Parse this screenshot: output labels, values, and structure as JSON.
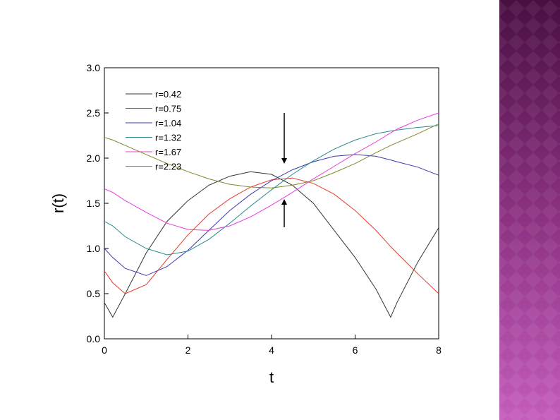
{
  "chart_data": {
    "type": "line",
    "x_label": "t",
    "y_label": "r(t)",
    "x": [
      0,
      0.2,
      0.5,
      1,
      1.5,
      2,
      2.5,
      3,
      3.5,
      4,
      4.5,
      5,
      5.5,
      6,
      6.5,
      6.85,
      7,
      7.5,
      8
    ],
    "series": [
      {
        "name": "r=0.42",
        "color": "#333333",
        "values": [
          0.4,
          0.24,
          0.5,
          0.95,
          1.3,
          1.53,
          1.7,
          1.8,
          1.85,
          1.82,
          1.7,
          1.5,
          1.2,
          0.9,
          0.55,
          0.24,
          0.4,
          0.85,
          1.23
        ]
      },
      {
        "name": "r=0.75",
        "color": "#e8392c",
        "values": [
          0.75,
          0.62,
          0.5,
          0.6,
          0.88,
          1.15,
          1.38,
          1.55,
          1.68,
          1.76,
          1.78,
          1.72,
          1.6,
          1.42,
          1.2,
          1.02,
          0.95,
          0.72,
          0.5
        ]
      },
      {
        "name": "r=1.04",
        "color": "#3a3ab0",
        "values": [
          1.0,
          0.9,
          0.78,
          0.7,
          0.8,
          0.98,
          1.2,
          1.42,
          1.6,
          1.75,
          1.87,
          1.96,
          2.02,
          2.04,
          2.02,
          1.98,
          1.96,
          1.9,
          1.81
        ]
      },
      {
        "name": "r=1.32",
        "color": "#2a8a8a",
        "values": [
          1.3,
          1.25,
          1.13,
          1.0,
          0.93,
          0.97,
          1.1,
          1.28,
          1.47,
          1.65,
          1.82,
          1.97,
          2.1,
          2.2,
          2.27,
          2.3,
          2.31,
          2.34,
          2.36
        ]
      },
      {
        "name": "r=1.67",
        "color": "#e83ae0",
        "values": [
          1.66,
          1.62,
          1.53,
          1.4,
          1.28,
          1.21,
          1.2,
          1.25,
          1.35,
          1.48,
          1.62,
          1.77,
          1.91,
          2.05,
          2.18,
          2.28,
          2.32,
          2.42,
          2.5
        ]
      },
      {
        "name": "r=2.23",
        "color": "#7a8a2a",
        "values": [
          2.23,
          2.2,
          2.14,
          2.04,
          1.94,
          1.85,
          1.77,
          1.71,
          1.68,
          1.67,
          1.7,
          1.75,
          1.84,
          1.94,
          2.06,
          2.14,
          2.17,
          2.27,
          2.38
        ]
      }
    ],
    "xlim": [
      0,
      8
    ],
    "xticks": [
      0,
      2,
      4,
      6,
      8
    ],
    "ylim": [
      0,
      3
    ],
    "yticks": [
      {
        "value": 0,
        "label": "0.0"
      },
      {
        "value": 0.5,
        "label": "0.5"
      },
      {
        "value": 1,
        "label": "1.0"
      },
      {
        "value": 1.5,
        "label": "1.5"
      },
      {
        "value": 2,
        "label": "2.0"
      },
      {
        "value": 2.5,
        "label": "2.5"
      },
      {
        "value": 3,
        "label": "3.0"
      }
    ],
    "legend": "upper left"
  }
}
